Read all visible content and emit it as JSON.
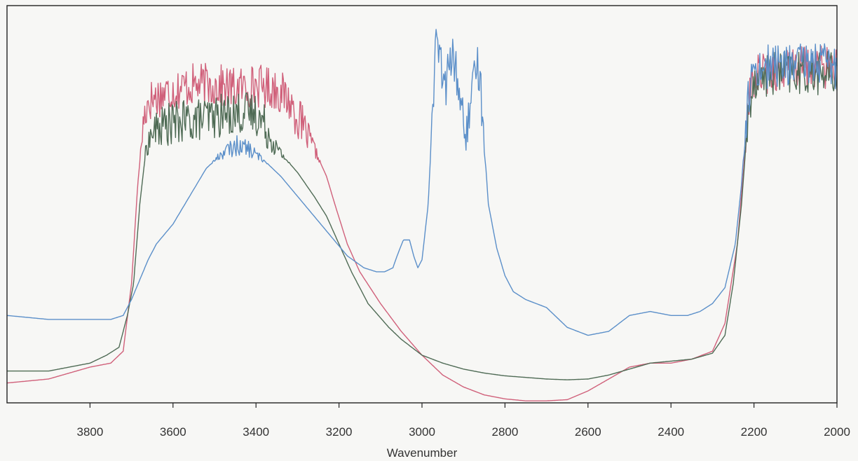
{
  "chart_data": {
    "type": "line",
    "title": "",
    "xlabel": "Wavenumber",
    "ylabel": "",
    "xlim": [
      4000,
      2000
    ],
    "ylim": [
      0,
      1
    ],
    "x_reversed": true,
    "grid": false,
    "legend": "none",
    "x_ticks": [
      3800,
      3600,
      3400,
      3200,
      3000,
      2800,
      2600,
      2400,
      2200,
      2000
    ],
    "x_tick_labels": [
      "3800",
      "3600",
      "3400",
      "3200",
      "3000",
      "2800",
      "2600",
      "2400",
      "2200",
      "2000"
    ],
    "series": [
      {
        "color": "#d0607a",
        "noise": true,
        "points": [
          [
            4000,
            0.05
          ],
          [
            3900,
            0.06
          ],
          [
            3800,
            0.09
          ],
          [
            3750,
            0.1
          ],
          [
            3720,
            0.13
          ],
          [
            3700,
            0.3
          ],
          [
            3685,
            0.55
          ],
          [
            3670,
            0.72
          ],
          [
            3660,
            0.76
          ],
          [
            3620,
            0.78
          ],
          [
            3560,
            0.8
          ],
          [
            3500,
            0.8
          ],
          [
            3450,
            0.79
          ],
          [
            3400,
            0.8
          ],
          [
            3350,
            0.79
          ],
          [
            3320,
            0.76
          ],
          [
            3300,
            0.72
          ],
          [
            3260,
            0.64
          ],
          [
            3230,
            0.57
          ],
          [
            3210,
            0.5
          ],
          [
            3180,
            0.4
          ],
          [
            3150,
            0.33
          ],
          [
            3100,
            0.25
          ],
          [
            3050,
            0.18
          ],
          [
            3000,
            0.12
          ],
          [
            2950,
            0.07
          ],
          [
            2900,
            0.04
          ],
          [
            2850,
            0.02
          ],
          [
            2800,
            0.01
          ],
          [
            2750,
            0.005
          ],
          [
            2700,
            0.005
          ],
          [
            2650,
            0.008
          ],
          [
            2600,
            0.03
          ],
          [
            2550,
            0.06
          ],
          [
            2500,
            0.09
          ],
          [
            2450,
            0.1
          ],
          [
            2400,
            0.1
          ],
          [
            2350,
            0.11
          ],
          [
            2300,
            0.13
          ],
          [
            2270,
            0.2
          ],
          [
            2240,
            0.4
          ],
          [
            2220,
            0.65
          ],
          [
            2210,
            0.78
          ],
          [
            2200,
            0.82
          ],
          [
            2150,
            0.84
          ],
          [
            2100,
            0.84
          ],
          [
            2050,
            0.85
          ],
          [
            2000,
            0.84
          ]
        ]
      },
      {
        "color": "#4f6b55",
        "noise": true,
        "points": [
          [
            4000,
            0.08
          ],
          [
            3900,
            0.08
          ],
          [
            3800,
            0.1
          ],
          [
            3760,
            0.12
          ],
          [
            3730,
            0.14
          ],
          [
            3710,
            0.22
          ],
          [
            3695,
            0.3
          ],
          [
            3680,
            0.5
          ],
          [
            3665,
            0.64
          ],
          [
            3650,
            0.68
          ],
          [
            3620,
            0.7
          ],
          [
            3560,
            0.71
          ],
          [
            3500,
            0.72
          ],
          [
            3450,
            0.73
          ],
          [
            3400,
            0.73
          ],
          [
            3380,
            0.7
          ],
          [
            3350,
            0.64
          ],
          [
            3300,
            0.58
          ],
          [
            3260,
            0.52
          ],
          [
            3230,
            0.47
          ],
          [
            3200,
            0.4
          ],
          [
            3170,
            0.33
          ],
          [
            3130,
            0.25
          ],
          [
            3080,
            0.19
          ],
          [
            3050,
            0.16
          ],
          [
            3000,
            0.12
          ],
          [
            2950,
            0.1
          ],
          [
            2900,
            0.085
          ],
          [
            2850,
            0.075
          ],
          [
            2800,
            0.068
          ],
          [
            2750,
            0.064
          ],
          [
            2700,
            0.06
          ],
          [
            2650,
            0.058
          ],
          [
            2600,
            0.06
          ],
          [
            2550,
            0.07
          ],
          [
            2500,
            0.085
          ],
          [
            2450,
            0.1
          ],
          [
            2400,
            0.105
          ],
          [
            2350,
            0.11
          ],
          [
            2300,
            0.125
          ],
          [
            2270,
            0.17
          ],
          [
            2250,
            0.3
          ],
          [
            2230,
            0.5
          ],
          [
            2220,
            0.64
          ],
          [
            2210,
            0.76
          ],
          [
            2200,
            0.82
          ],
          [
            2150,
            0.83
          ],
          [
            2100,
            0.83
          ],
          [
            2050,
            0.83
          ],
          [
            2000,
            0.83
          ]
        ]
      },
      {
        "color": "#5b8fc9",
        "noise": true,
        "points": [
          [
            4000,
            0.22
          ],
          [
            3900,
            0.21
          ],
          [
            3800,
            0.21
          ],
          [
            3750,
            0.21
          ],
          [
            3720,
            0.22
          ],
          [
            3700,
            0.26
          ],
          [
            3680,
            0.31
          ],
          [
            3660,
            0.36
          ],
          [
            3640,
            0.4
          ],
          [
            3600,
            0.45
          ],
          [
            3560,
            0.52
          ],
          [
            3520,
            0.59
          ],
          [
            3480,
            0.63
          ],
          [
            3440,
            0.65
          ],
          [
            3420,
            0.64
          ],
          [
            3380,
            0.61
          ],
          [
            3340,
            0.57
          ],
          [
            3300,
            0.52
          ],
          [
            3260,
            0.47
          ],
          [
            3220,
            0.42
          ],
          [
            3180,
            0.37
          ],
          [
            3140,
            0.34
          ],
          [
            3110,
            0.33
          ],
          [
            3090,
            0.33
          ],
          [
            3070,
            0.34
          ],
          [
            3060,
            0.37
          ],
          [
            3045,
            0.41
          ],
          [
            3030,
            0.41
          ],
          [
            3020,
            0.37
          ],
          [
            3010,
            0.34
          ],
          [
            3000,
            0.36
          ],
          [
            2985,
            0.5
          ],
          [
            2972,
            0.8
          ],
          [
            2965,
            0.92
          ],
          [
            2955,
            0.85
          ],
          [
            2945,
            0.78
          ],
          [
            2935,
            0.85
          ],
          [
            2925,
            0.87
          ],
          [
            2915,
            0.82
          ],
          [
            2905,
            0.74
          ],
          [
            2895,
            0.67
          ],
          [
            2885,
            0.72
          ],
          [
            2875,
            0.8
          ],
          [
            2868,
            0.86
          ],
          [
            2860,
            0.82
          ],
          [
            2850,
            0.65
          ],
          [
            2840,
            0.5
          ],
          [
            2820,
            0.39
          ],
          [
            2800,
            0.32
          ],
          [
            2780,
            0.28
          ],
          [
            2750,
            0.26
          ],
          [
            2700,
            0.24
          ],
          [
            2650,
            0.19
          ],
          [
            2600,
            0.17
          ],
          [
            2550,
            0.18
          ],
          [
            2500,
            0.22
          ],
          [
            2450,
            0.23
          ],
          [
            2400,
            0.22
          ],
          [
            2360,
            0.22
          ],
          [
            2330,
            0.23
          ],
          [
            2300,
            0.25
          ],
          [
            2270,
            0.29
          ],
          [
            2245,
            0.4
          ],
          [
            2230,
            0.55
          ],
          [
            2220,
            0.7
          ],
          [
            2210,
            0.8
          ],
          [
            2200,
            0.84
          ],
          [
            2150,
            0.85
          ],
          [
            2100,
            0.85
          ],
          [
            2050,
            0.86
          ],
          [
            2000,
            0.84
          ]
        ]
      }
    ]
  }
}
